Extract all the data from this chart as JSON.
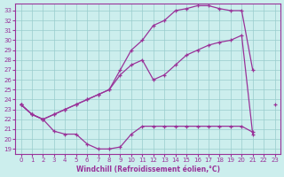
{
  "xlabel": "Windchill (Refroidissement éolien,°C)",
  "bg_color": "#cceeed",
  "grid_color": "#99cccc",
  "line_color": "#993399",
  "x_ticks": [
    0,
    1,
    2,
    3,
    4,
    5,
    6,
    7,
    8,
    9,
    10,
    11,
    12,
    13,
    14,
    15,
    16,
    17,
    18,
    19,
    20,
    21,
    22,
    23
  ],
  "y_ticks": [
    19,
    20,
    21,
    22,
    23,
    24,
    25,
    26,
    27,
    28,
    29,
    30,
    31,
    32,
    33
  ],
  "xlim": [
    -0.5,
    23.5
  ],
  "ylim": [
    18.5,
    33.7
  ],
  "s1x": [
    0,
    1,
    2,
    3,
    4,
    5,
    6,
    7,
    8,
    9,
    10,
    11,
    12,
    13,
    14,
    15,
    16,
    17,
    18,
    19,
    20,
    21,
    22,
    23
  ],
  "s1y": [
    23.5,
    22.5,
    22.0,
    22.5,
    23.0,
    23.5,
    24.0,
    24.5,
    25.0,
    27.0,
    29.0,
    30.0,
    31.5,
    32.0,
    33.0,
    33.2,
    33.5,
    33.5,
    33.2,
    33.0,
    33.0,
    27.0,
    null,
    23.5
  ],
  "s2x": [
    0,
    1,
    2,
    3,
    4,
    5,
    6,
    7,
    8,
    9,
    10,
    11,
    12,
    13,
    14,
    15,
    16,
    17,
    18,
    19,
    20,
    21
  ],
  "s2y": [
    23.5,
    22.5,
    22.0,
    22.5,
    23.0,
    23.5,
    24.0,
    24.5,
    25.0,
    26.5,
    27.5,
    28.0,
    26.0,
    26.5,
    27.5,
    28.5,
    29.0,
    29.5,
    29.8,
    30.0,
    30.5,
    20.5
  ],
  "s3x": [
    0,
    1,
    2,
    3,
    4,
    5,
    6,
    7,
    8,
    9,
    10,
    11,
    12,
    13,
    14,
    15,
    16,
    17,
    18,
    19,
    20,
    21
  ],
  "s3y": [
    23.5,
    22.5,
    22.0,
    20.8,
    20.5,
    20.5,
    19.5,
    19.0,
    19.0,
    19.2,
    20.5,
    21.3,
    21.3,
    21.3,
    21.3,
    21.3,
    21.3,
    21.3,
    21.3,
    21.3,
    21.3,
    20.7
  ]
}
